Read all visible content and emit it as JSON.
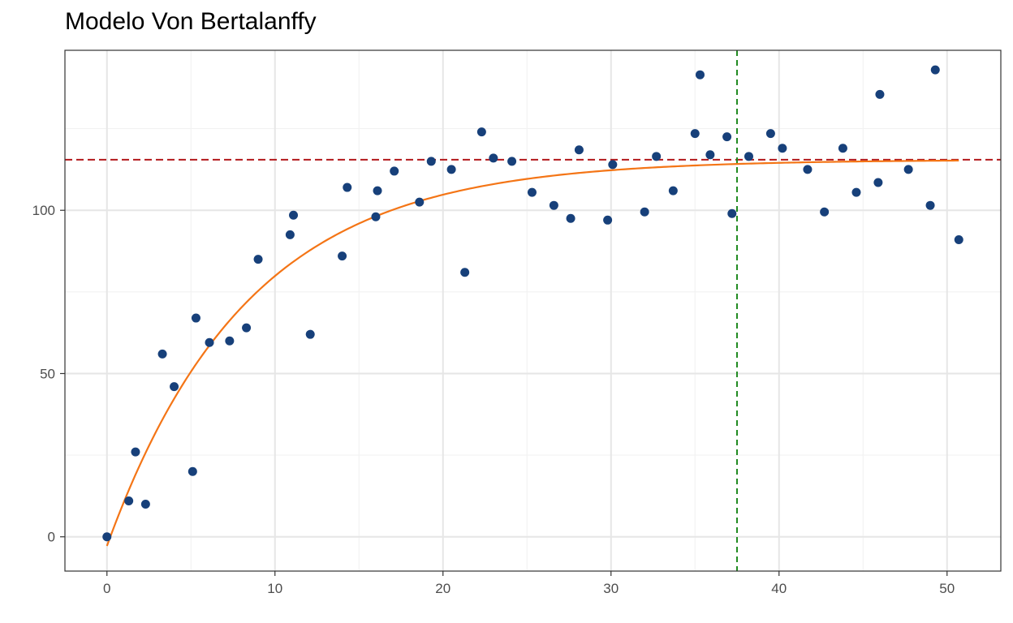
{
  "chart_data": {
    "type": "scatter",
    "title": "Modelo Von Bertalanffy",
    "xlabel": "",
    "ylabel": "",
    "xlim": [
      -2.5,
      53.2
    ],
    "ylim": [
      -10.5,
      149
    ],
    "x_ticks": [
      0,
      10,
      20,
      30,
      40,
      50
    ],
    "y_ticks": [
      0,
      50,
      100
    ],
    "grid": true,
    "legend": "none",
    "colors": {
      "points": "#17407a",
      "curve": "#f47516",
      "asymptote": "#b2181b",
      "vertical_line": "#228b22",
      "grid_major": "#e6e6e6",
      "grid_minor": "#f2f2f2",
      "panel_border": "#333333"
    },
    "points": [
      [
        0,
        0
      ],
      [
        1.3,
        11
      ],
      [
        1.7,
        26
      ],
      [
        2.3,
        10
      ],
      [
        3.3,
        56
      ],
      [
        4.0,
        46
      ],
      [
        5.1,
        20
      ],
      [
        5.3,
        67
      ],
      [
        6.1,
        59.5
      ],
      [
        7.3,
        60
      ],
      [
        8.3,
        64
      ],
      [
        9.0,
        85
      ],
      [
        10.9,
        92.5
      ],
      [
        11.1,
        98.5
      ],
      [
        12.1,
        62
      ],
      [
        14.0,
        86
      ],
      [
        14.3,
        107
      ],
      [
        16.0,
        98
      ],
      [
        16.1,
        106
      ],
      [
        17.1,
        112
      ],
      [
        18.6,
        102.5
      ],
      [
        19.3,
        115
      ],
      [
        20.5,
        112.5
      ],
      [
        21.3,
        81
      ],
      [
        22.3,
        124
      ],
      [
        23.0,
        116
      ],
      [
        24.1,
        115
      ],
      [
        25.3,
        105.5
      ],
      [
        26.6,
        101.5
      ],
      [
        27.6,
        97.5
      ],
      [
        28.1,
        118.5
      ],
      [
        29.8,
        97
      ],
      [
        30.1,
        114
      ],
      [
        32.0,
        99.5
      ],
      [
        32.7,
        116.5
      ],
      [
        33.7,
        106
      ],
      [
        35.0,
        123.5
      ],
      [
        35.3,
        141.5
      ],
      [
        35.9,
        117
      ],
      [
        36.9,
        122.5
      ],
      [
        37.2,
        99
      ],
      [
        38.2,
        116.5
      ],
      [
        39.5,
        123.5
      ],
      [
        40.2,
        119
      ],
      [
        41.7,
        112.5
      ],
      [
        42.7,
        99.5
      ],
      [
        43.8,
        119
      ],
      [
        44.6,
        105.5
      ],
      [
        45.9,
        108.5
      ],
      [
        46.0,
        135.5
      ],
      [
        47.7,
        112.5
      ],
      [
        49.0,
        101.5
      ],
      [
        49.3,
        143
      ],
      [
        50.7,
        91
      ]
    ],
    "fitted_curve": {
      "model": "von_bertalanffy",
      "Linf": 115.5,
      "K": 0.12,
      "t0": 0.2,
      "x_range": [
        0,
        50.7
      ]
    },
    "asymptote_y": 115.5,
    "vertical_line_x": 37.5
  }
}
